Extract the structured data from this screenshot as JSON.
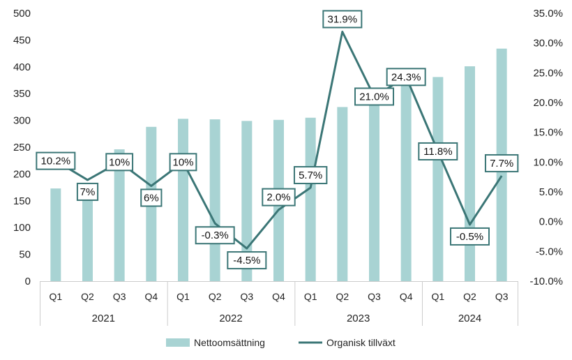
{
  "chart_data": {
    "type": "bar",
    "title": "",
    "categories": [
      "Q1",
      "Q2",
      "Q3",
      "Q4",
      "Q1",
      "Q2",
      "Q3",
      "Q4",
      "Q1",
      "Q2",
      "Q3",
      "Q4",
      "Q1",
      "Q2",
      "Q3"
    ],
    "groups": [
      {
        "label": "2021",
        "count": 4
      },
      {
        "label": "2022",
        "count": 4
      },
      {
        "label": "2023",
        "count": 4
      },
      {
        "label": "2024",
        "count": 3
      }
    ],
    "series": [
      {
        "name": "Nettoomsättning",
        "type": "bar",
        "axis": "left",
        "values": [
          173,
          183,
          246,
          288,
          303,
          302,
          299,
          301,
          305,
          325,
          352,
          367,
          381,
          401,
          434
        ]
      },
      {
        "name": "Organisk tillväxt",
        "type": "line",
        "axis": "right",
        "values": [
          10.2,
          7.0,
          10.0,
          6.0,
          10.0,
          -0.3,
          -4.5,
          2.0,
          5.7,
          31.9,
          21.0,
          24.3,
          11.8,
          -0.5,
          7.7
        ],
        "labels": [
          "10.2%",
          "7%",
          "10%",
          "6%",
          "10%",
          "-0.3%",
          "-4.5%",
          "2.0%",
          "5.7%",
          "31.9%",
          "21.0%",
          "24.3%",
          "11.8%",
          "-0.5%",
          "7.7%"
        ]
      }
    ],
    "y_left": {
      "min": 0,
      "max": 500,
      "step": 50,
      "ticks": [
        "0",
        "50",
        "100",
        "150",
        "200",
        "250",
        "300",
        "350",
        "400",
        "450",
        "500"
      ]
    },
    "y_right": {
      "min": -10,
      "max": 35,
      "step": 5,
      "ticks": [
        "-10.0%",
        "-5.0%",
        "0.0%",
        "5.0%",
        "10.0%",
        "15.0%",
        "20.0%",
        "25.0%",
        "30.0%",
        "35.0%"
      ]
    },
    "legend": {
      "position": "bottom",
      "items": [
        "Nettoomsättning",
        "Organisk tillväxt"
      ]
    },
    "colors": {
      "bar": "#a8d3d3",
      "line": "#3b7676",
      "label_border": "#3b7676",
      "axis": "#cccccc"
    }
  }
}
